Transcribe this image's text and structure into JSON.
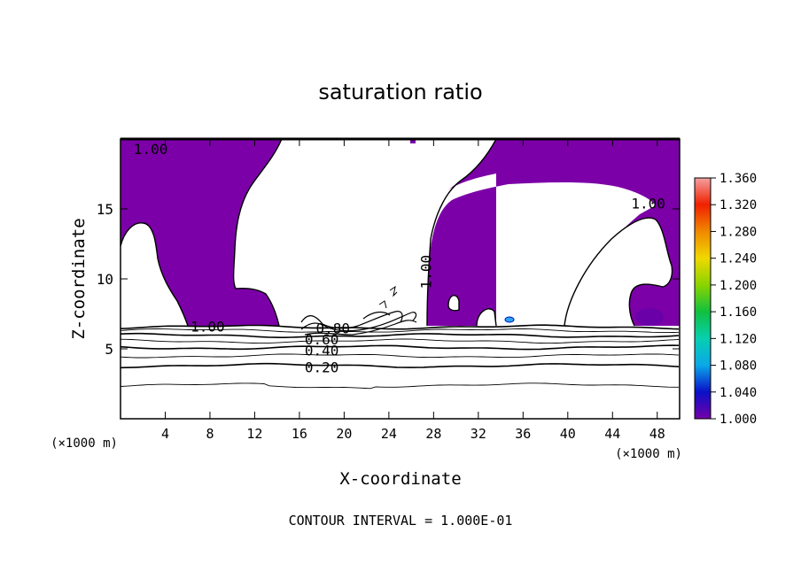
{
  "chart_data": {
    "type": "heatmap",
    "title": "saturation ratio",
    "xlabel": "X-coordinate",
    "ylabel": "Z-coordinate",
    "x_unit": "(×1000 m)",
    "y_unit": "(×1000 m)",
    "xlim": [
      0,
      50
    ],
    "ylim": [
      0,
      20
    ],
    "x_ticks": [
      4,
      8,
      12,
      16,
      20,
      24,
      28,
      32,
      36,
      40,
      44,
      48
    ],
    "y_ticks": [
      5,
      10,
      15
    ],
    "footer": "CONTOUR INTERVAL = 1.000E-01",
    "colorbar": {
      "min": 1.0,
      "max": 1.36,
      "tick_labels": [
        "1.000",
        "1.040",
        "1.080",
        "1.120",
        "1.160",
        "1.200",
        "1.240",
        "1.280",
        "1.320",
        "1.360"
      ],
      "colors": [
        "#7400a8",
        "#0a10c8",
        "#0aa8e8",
        "#08cfb0",
        "#10c040",
        "#8ad400",
        "#f0d800",
        "#f08800",
        "#f02000",
        "#f4a0a0"
      ]
    },
    "fill_region_color": "#7c00a8",
    "contour_levels": [
      0.2,
      0.3,
      0.4,
      0.5,
      0.6,
      0.7,
      0.8,
      0.9,
      1.0
    ],
    "contour_labels": [
      {
        "text": "1.00",
        "x": 2.7,
        "z": 19.3
      },
      {
        "text": "1.00",
        "x": 7.8,
        "z": 6.6
      },
      {
        "text": "0.80",
        "x": 19.0,
        "z": 6.5
      },
      {
        "text": "0.60",
        "x": 18.0,
        "z": 5.7
      },
      {
        "text": "0.40",
        "x": 18.0,
        "z": 4.9
      },
      {
        "text": "0.20",
        "x": 18.0,
        "z": 3.7
      },
      {
        "text": "1.00",
        "x": 27.3,
        "z": 10.5
      },
      {
        "text": "1.00",
        "x": 47.2,
        "z": 15.4
      }
    ],
    "contour_lines_z": [
      6.55,
      6.3,
      5.95,
      5.55,
      5.1,
      4.5,
      3.8,
      2.4
    ]
  }
}
